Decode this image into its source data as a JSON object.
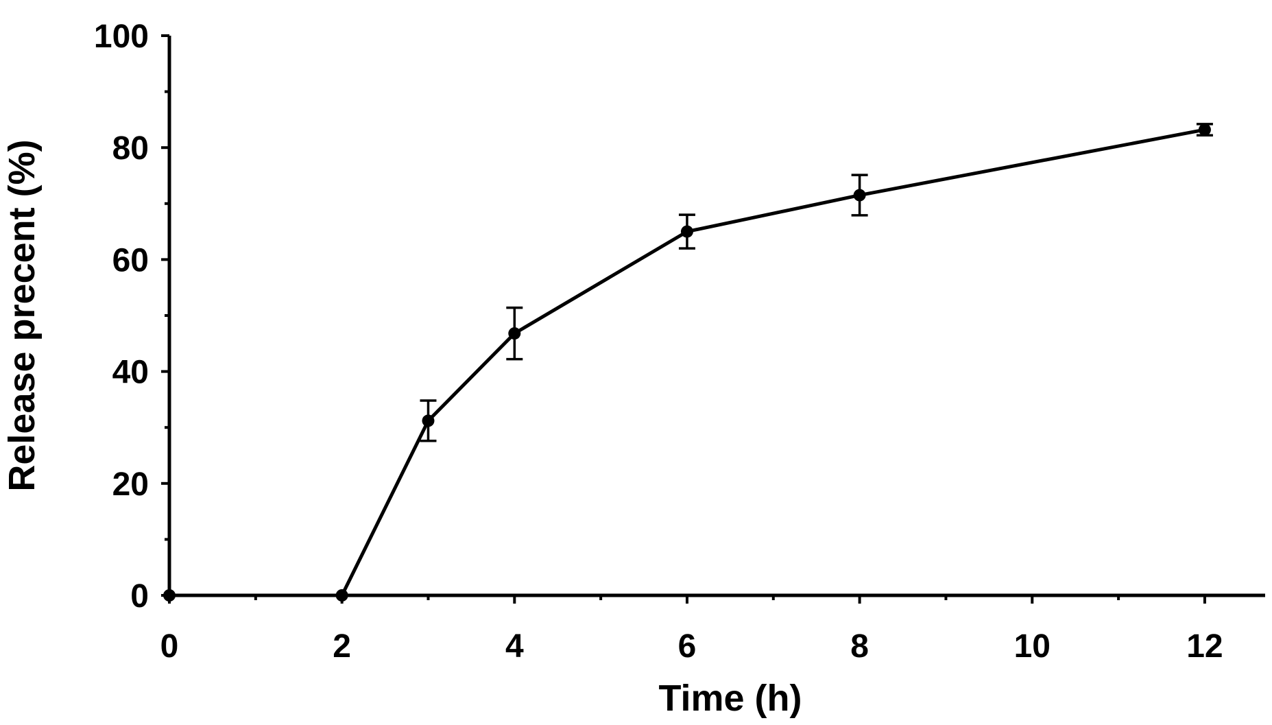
{
  "chart_data": {
    "type": "line",
    "title": "",
    "xlabel": "Time (h)",
    "ylabel": "Release  precent (%)",
    "xlim": [
      0,
      12.7
    ],
    "ylim": [
      0,
      100
    ],
    "x_ticks": [
      0,
      2,
      4,
      6,
      8,
      10,
      12
    ],
    "x_minor_ticks": [
      1,
      3,
      5,
      7,
      9,
      11
    ],
    "y_ticks": [
      0,
      20,
      40,
      60,
      80,
      100
    ],
    "y_minor_ticks": [
      10,
      30,
      50,
      70,
      90
    ],
    "grid": false,
    "legend": "none",
    "series": [
      {
        "x": [
          0,
          2,
          3,
          4,
          6,
          8,
          12
        ],
        "y": [
          0,
          0,
          31.2,
          46.8,
          65.0,
          71.5,
          83.2
        ],
        "error": [
          0,
          0,
          3.6,
          4.6,
          3.0,
          3.6,
          1.0
        ],
        "color": "#000000"
      }
    ]
  }
}
